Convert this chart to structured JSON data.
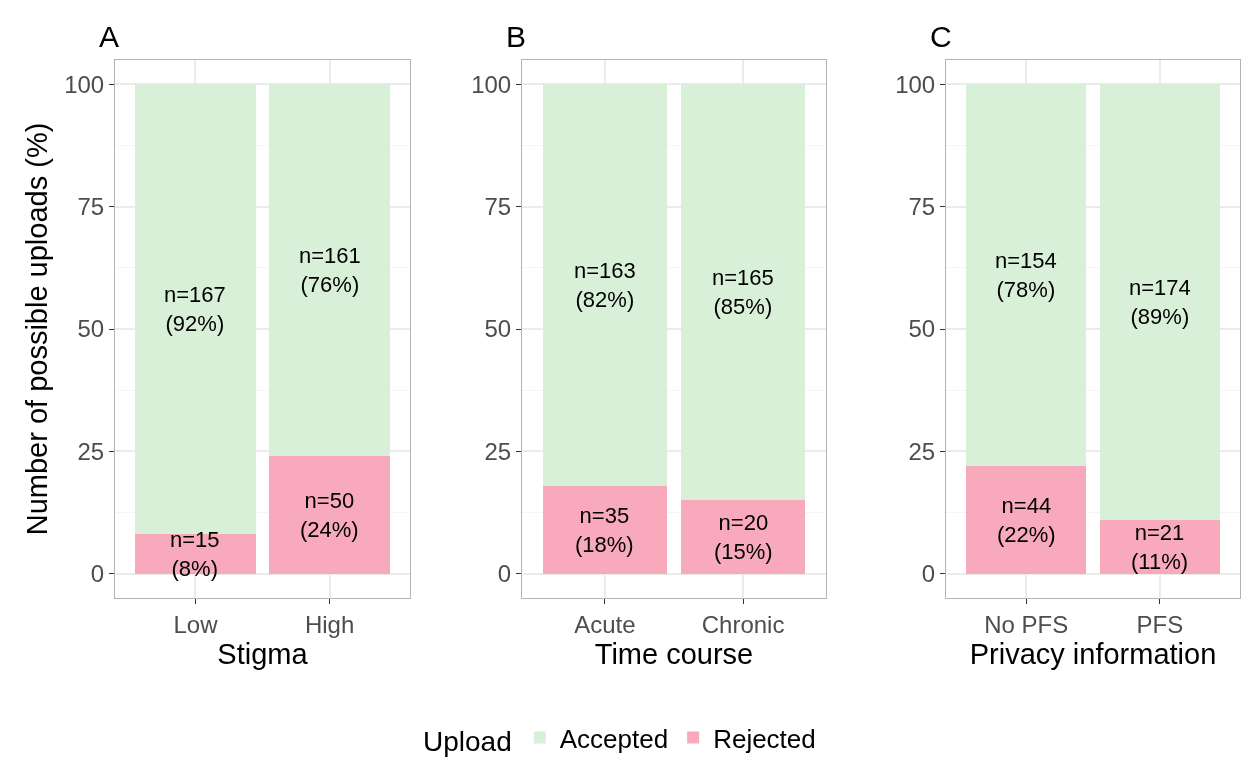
{
  "chart_data": [
    {
      "type": "bar",
      "stacked": true,
      "title": "A",
      "xlabel": "Stigma",
      "ylabel": "Number of possible uploads (%)",
      "categories": [
        "Low",
        "High"
      ],
      "ylim": [
        -5,
        105
      ],
      "yticks": [
        0,
        25,
        50,
        75,
        100
      ],
      "grid": true,
      "legend": "bottom",
      "legend_title": "Upload",
      "series": [
        {
          "name": "Rejected",
          "color": "#f8a9bc",
          "values": [
            8,
            24
          ],
          "value_labels": [
            "n=15\n(8%)",
            "n=50\n(24%)"
          ]
        },
        {
          "name": "Accepted",
          "color": "#d8efd8",
          "values": [
            92,
            76
          ],
          "value_labels": [
            "n=167\n(92%)",
            "n=161\n(76%)"
          ]
        }
      ]
    },
    {
      "type": "bar",
      "stacked": true,
      "title": "B",
      "xlabel": "Time course",
      "categories": [
        "Acute",
        "Chronic"
      ],
      "ylim": [
        -5,
        105
      ],
      "yticks": [
        0,
        25,
        50,
        75,
        100
      ],
      "grid": true,
      "series": [
        {
          "color": "#f8a9bc",
          "values": [
            18,
            15
          ],
          "value_labels": [
            "n=35\n(18%)",
            "n=20\n(15%)"
          ]
        },
        {
          "color": "#d8efd8",
          "values": [
            82,
            85
          ],
          "value_labels": [
            "n=163\n(82%)",
            "n=165\n(85%)"
          ]
        }
      ]
    },
    {
      "type": "bar",
      "stacked": true,
      "title": "C",
      "xlabel": "Privacy information",
      "categories": [
        "No PFS",
        "PFS"
      ],
      "ylim": [
        -5,
        105
      ],
      "yticks": [
        0,
        25,
        50,
        75,
        100
      ],
      "grid": true,
      "series": [
        {
          "color": "#f8a9bc",
          "values": [
            22,
            11
          ],
          "value_labels": [
            "n=44\n(22%)",
            "n=21\n(11%)"
          ]
        },
        {
          "color": "#d8efd8",
          "values": [
            78,
            89
          ],
          "value_labels": [
            "n=154\n(78%)",
            "n=174\n(89%)"
          ]
        }
      ]
    }
  ]
}
